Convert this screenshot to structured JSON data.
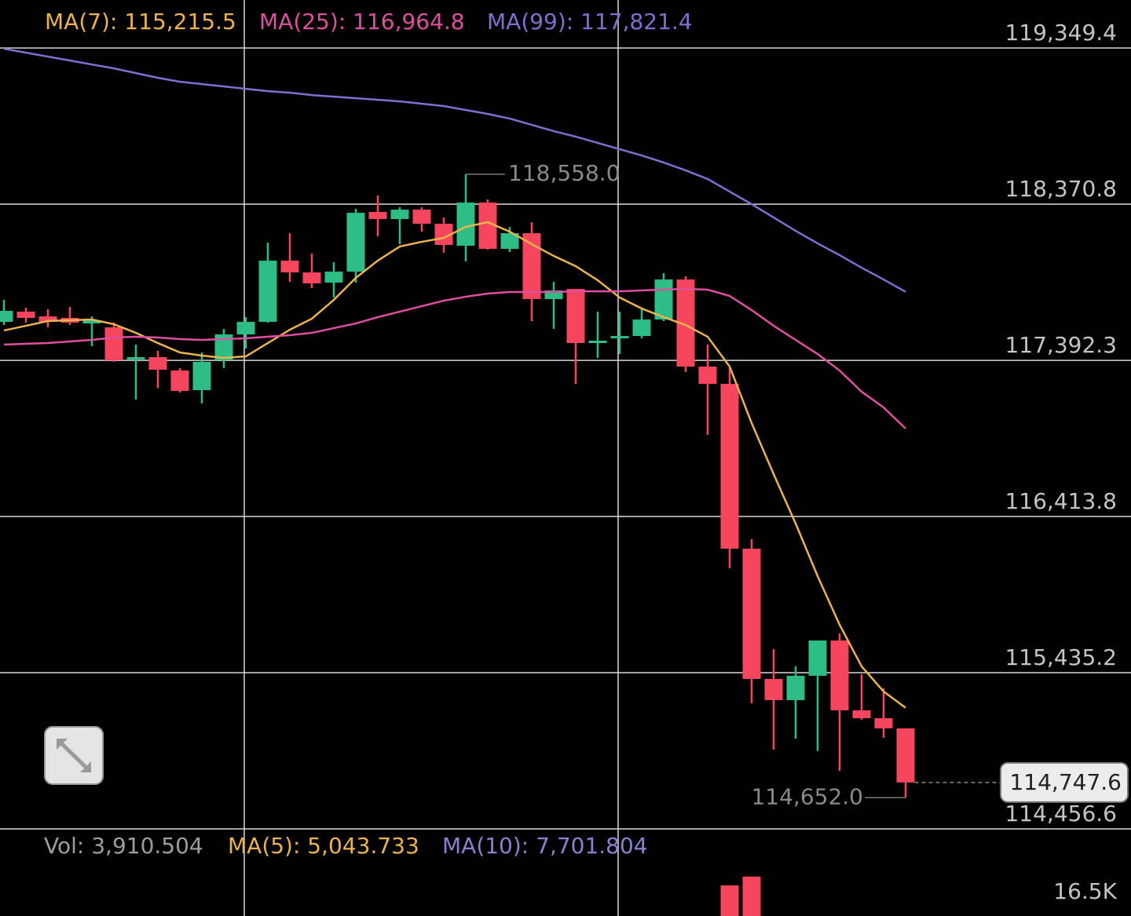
{
  "chart_data": {
    "type": "candlestick",
    "up_color": "#2ebd85",
    "down_color": "#f6465d",
    "grid": true,
    "ylim": [
      114456.6,
      119650
    ],
    "yticks": [
      {
        "value": 119349.4,
        "label": "119,349.4"
      },
      {
        "value": 118370.8,
        "label": "118,370.8"
      },
      {
        "value": 117392.3,
        "label": "117,392.3"
      },
      {
        "value": 116413.8,
        "label": "116,413.8"
      },
      {
        "value": 115435.2,
        "label": "115,435.2"
      },
      {
        "value": 114456.6,
        "label": "114,456.6"
      }
    ],
    "open": [
      117633.4,
      117697.3,
      117667.8,
      117658.0,
      117623.5,
      117599.0,
      117397.4,
      117412.1,
      117328.5,
      117205.6,
      117392.5,
      117554.7,
      117633.4,
      118016.9,
      117943.1,
      117879.2,
      117948.0,
      118321.7,
      118277.5,
      118336.5,
      118248.0,
      118110.3,
      118380.8,
      118090.6,
      118189.0,
      117776.0,
      117839.9,
      117500.6,
      117530.1,
      117544.9,
      117648.1,
      117898.9,
      117353.1,
      117245.0,
      116212.4,
      115396.1,
      115263.3,
      115415.8,
      115637.1,
      115199.4,
      115150.2,
      115086.3
    ],
    "high": [
      117771.0,
      117721.9,
      117712.1,
      117726.8,
      117667.8,
      117628.5,
      117490.8,
      117451.5,
      117343.3,
      117441.6,
      117589.1,
      117662.9,
      118130.0,
      118189.0,
      118061.1,
      118007.1,
      118341.4,
      118425.0,
      118351.2,
      118351.2,
      118287.3,
      118558.0,
      118400.4,
      118228.4,
      118257.8,
      117884.1,
      117839.9,
      117697.3,
      117697.3,
      117712.1,
      117938.2,
      117918.6,
      117490.8,
      117343.3,
      116271.4,
      115582.9,
      115474.8,
      115637.1,
      115681.3,
      115425.6,
      115337.2,
      115086.3
    ],
    "low": [
      117613.7,
      117628.5,
      117599.0,
      117613.7,
      117481.0,
      117382.6,
      117146.6,
      117218.3,
      117190.8,
      117122.0,
      117343.3,
      117466.2,
      117628.5,
      117884.1,
      117844.8,
      117785.8,
      117879.2,
      118169.3,
      118120.2,
      118198.8,
      118066.0,
      118012.0,
      118085.7,
      118071.0,
      117638.3,
      117589.1,
      117245.0,
      117407.2,
      117431.8,
      117530.1,
      117638.3,
      117318.7,
      116925.4,
      116089.4,
      115243.7,
      114953.6,
      115022.4,
      114943.8,
      114820.8,
      115140.4,
      115027.4,
      114652.0
    ],
    "close": [
      117702.2,
      117658.0,
      117633.4,
      117628.5,
      117643.2,
      117392.5,
      117412.1,
      117333.4,
      117200.6,
      117382.6,
      117554.7,
      117633.4,
      118016.9,
      117943.1,
      117874.3,
      117948.0,
      118316.8,
      118277.5,
      118336.5,
      118248.0,
      118115.2,
      118380.8,
      118090.6,
      118189.0,
      117776.0,
      117830.1,
      117500.6,
      117515.4,
      117544.9,
      117648.1,
      117898.9,
      117353.1,
      117245.0,
      116212.4,
      115396.1,
      115263.3,
      115415.8,
      115637.1,
      115199.4,
      115150.2,
      115086.3,
      114747.6
    ],
    "series": [
      {
        "name": "MA(7): 115,215.5",
        "color": "#ebb34f",
        "values": [
          117579.3,
          117608.8,
          117638.3,
          117643.2,
          117648.1,
          117618.6,
          117564.5,
          117500.6,
          117441.6,
          117421.9,
          117407.2,
          117417.0,
          117500.6,
          117584.2,
          117653.0,
          117771.0,
          117908.7,
          118016.9,
          118105.4,
          118134.9,
          118159.5,
          118228.4,
          118257.8,
          118198.8,
          118120.2,
          118046.4,
          117982.5,
          117894.0,
          117785.8,
          117717.0,
          117662.9,
          117613.7,
          117539.9,
          117353.1,
          116999.1,
          116679.5,
          116369.7,
          116040.3,
          115735.4,
          115474.8,
          115317.5,
          115215.5
        ]
      },
      {
        "name": "MA(25): 116,964.8",
        "color": "#df4f9f",
        "values": [
          117490.8,
          117495.7,
          117500.6,
          117510.4,
          117520.3,
          117535.0,
          117539.9,
          117535.0,
          117525.2,
          117520.3,
          117525.2,
          117530.1,
          117539.9,
          117549.7,
          117564.5,
          117594.0,
          117623.5,
          117662.9,
          117697.3,
          117731.7,
          117766.1,
          117790.7,
          117810.4,
          117820.2,
          117820.2,
          117820.2,
          117825.1,
          117825.1,
          117825.1,
          117830.1,
          117835.0,
          117839.9,
          117835.0,
          117795.7,
          117707.2,
          117608.8,
          117520.3,
          117431.8,
          117328.5,
          117195.7,
          117097.1,
          116964.8
        ]
      },
      {
        "name": "MA(99): 117,821.4",
        "color": "#7f70cf",
        "values": [
          119344.5,
          119319.9,
          119295.3,
          119270.7,
          119246.1,
          119221.5,
          119192.1,
          119162.6,
          119138.0,
          119123.2,
          119108.5,
          119093.7,
          119079.0,
          119069.2,
          119054.4,
          119044.6,
          119034.8,
          119024.9,
          119015.1,
          119000.3,
          118985.6,
          118961.0,
          118936.4,
          118906.9,
          118867.6,
          118828.3,
          118793.9,
          118754.5,
          118715.2,
          118675.9,
          118631.6,
          118582.4,
          118528.4,
          118449.7,
          118371.0,
          118287.3,
          118203.8,
          118125.1,
          118051.3,
          117972.6,
          117898.9,
          117821.4
        ]
      }
    ],
    "high_label": "118,558.0",
    "low_label": "114,652.0",
    "last_label": "114,747.6",
    "volume": {
      "header": [
        {
          "text": "Vol: 3,910.504",
          "color": "#9e9e9e"
        },
        {
          "text": "MA(5): 5,043.733",
          "color": "#ebb34f"
        },
        {
          "text": "MA(10): 7,701.804",
          "color": "#8e7fd0"
        }
      ],
      "ylim": [
        12500,
        22100
      ],
      "yticks": [
        {
          "value": 16500,
          "label": "16.5K"
        }
      ],
      "values": [
        null,
        null,
        null,
        null,
        null,
        null,
        null,
        null,
        null,
        null,
        null,
        null,
        null,
        null,
        null,
        null,
        null,
        null,
        null,
        null,
        null,
        null,
        null,
        null,
        null,
        null,
        null,
        null,
        null,
        null,
        null,
        null,
        null,
        17700,
        19200,
        null,
        null,
        null,
        null,
        null,
        null,
        null
      ]
    }
  }
}
